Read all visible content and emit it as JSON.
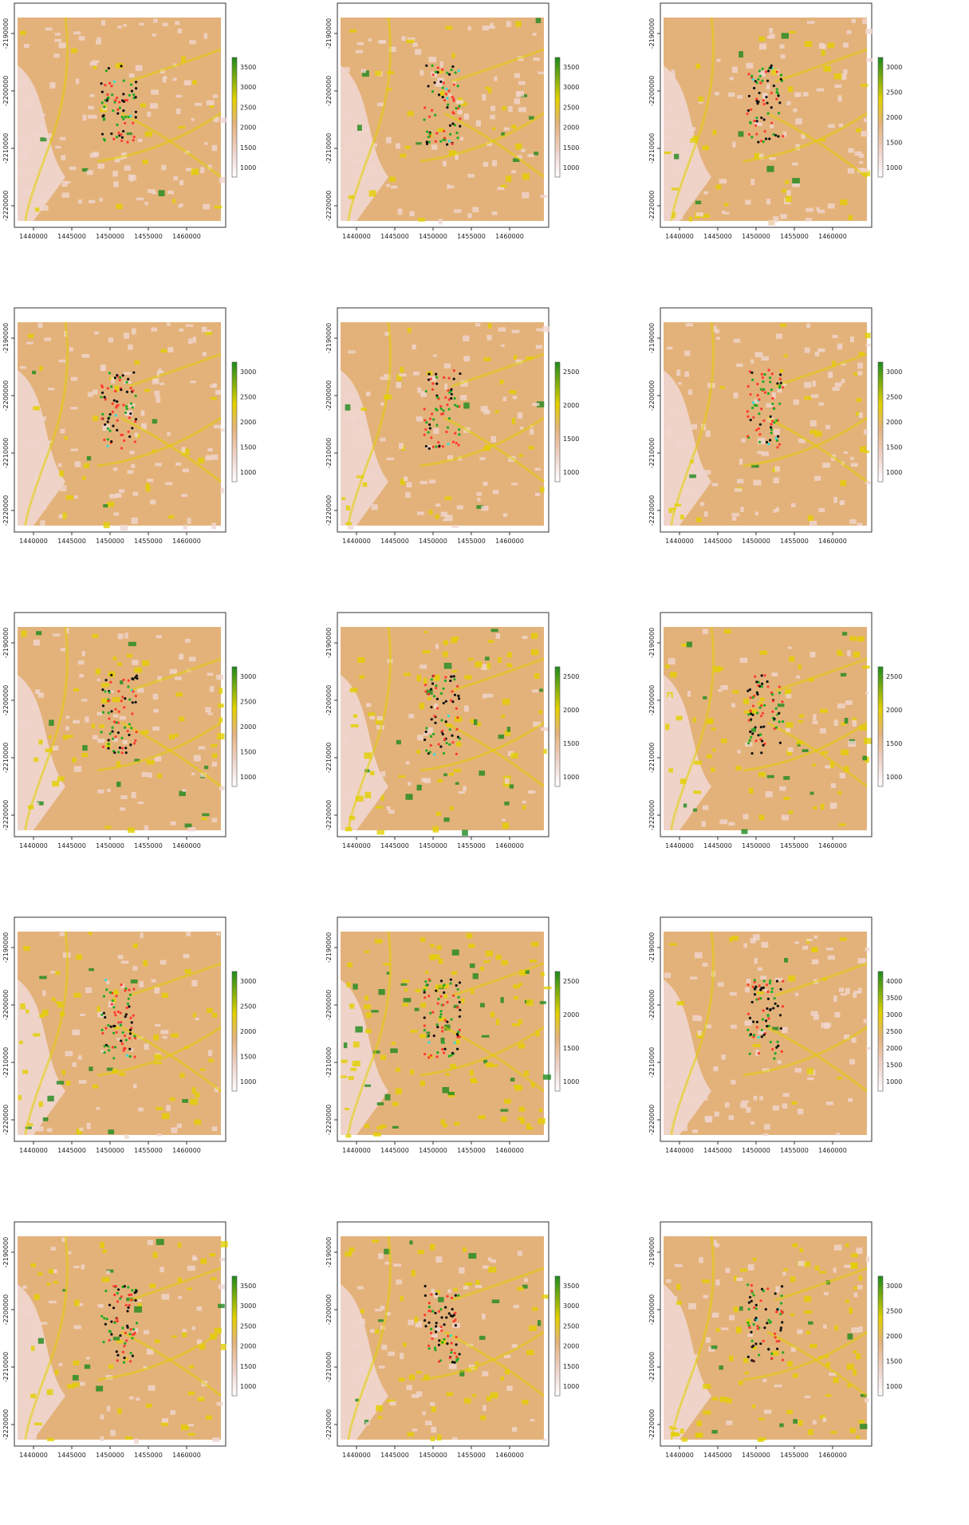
{
  "figure": {
    "x_axis_ticks": [
      "1440000",
      "1445000",
      "1450000",
      "1455000",
      "1460000"
    ],
    "y_axis_ticks": [
      "-2190000",
      "-2200000",
      "-2210000",
      "-2220000"
    ],
    "colors": {
      "low": "#f0d6d0",
      "mid": "#e3b27a",
      "yellow": "#e2d000",
      "high": "#1e8a1e",
      "points_red": "#ff3b30",
      "points_green": "#22aa22",
      "points_cyan": "#33dddd",
      "points_black": "#111111"
    },
    "panels": [
      {
        "legend_ticks": [
          "3500",
          "3000",
          "2500",
          "2000",
          "1500",
          "1000"
        ]
      },
      {
        "legend_ticks": [
          "3500",
          "3000",
          "2500",
          "2000",
          "1500",
          "1000"
        ]
      },
      {
        "legend_ticks": [
          "3000",
          "2500",
          "2000",
          "1500",
          "1000"
        ]
      },
      {
        "legend_ticks": [
          "3000",
          "2500",
          "2000",
          "1500",
          "1000"
        ]
      },
      {
        "legend_ticks": [
          "2500",
          "2000",
          "1500",
          "1000"
        ]
      },
      {
        "legend_ticks": [
          "3000",
          "2500",
          "2000",
          "1500",
          "1000"
        ]
      },
      {
        "legend_ticks": [
          "3000",
          "2500",
          "2000",
          "1500",
          "1000"
        ]
      },
      {
        "legend_ticks": [
          "2500",
          "2000",
          "1500",
          "1000"
        ]
      },
      {
        "legend_ticks": [
          "2500",
          "2000",
          "1500",
          "1000"
        ]
      },
      {
        "legend_ticks": [
          "3000",
          "2500",
          "2000",
          "1500",
          "1000"
        ]
      },
      {
        "legend_ticks": [
          "2500",
          "2000",
          "1500",
          "1000"
        ]
      },
      {
        "legend_ticks": [
          "4000",
          "3500",
          "3000",
          "2500",
          "2000",
          "1500",
          "1000"
        ]
      },
      {
        "legend_ticks": [
          "3500",
          "3000",
          "2500",
          "2000",
          "1500",
          "1000"
        ]
      },
      {
        "legend_ticks": [
          "3500",
          "3000",
          "2500",
          "2000",
          "1500",
          "1000"
        ]
      },
      {
        "legend_ticks": [
          "3000",
          "2500",
          "2000",
          "1500",
          "1000"
        ]
      }
    ]
  }
}
